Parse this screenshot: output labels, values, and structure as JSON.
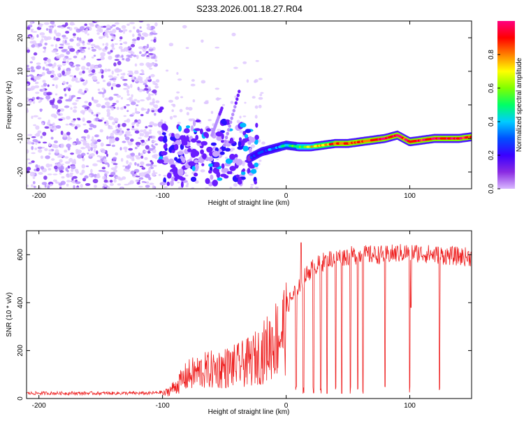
{
  "title": "S233.2026.001.18.27.R04",
  "chart_data": [
    {
      "type": "heatmap",
      "xlabel": "Height of straight line (km)",
      "ylabel": "Frequency (Hz)",
      "xlim": [
        -210,
        150
      ],
      "ylim": [
        -25,
        25
      ],
      "xticks": [
        -200,
        -100,
        0,
        100
      ],
      "yticks": [
        -20,
        -10,
        0,
        10,
        20
      ],
      "colorbar": {
        "label": "Normalized spectral amplitude",
        "range": [
          0,
          1
        ],
        "ticks": [
          "0.0",
          "0.2",
          "0.4",
          "0.6",
          "0.8"
        ],
        "colors": [
          "#ffffff",
          "#d9b8ff",
          "#8a2be2",
          "#3a00ff",
          "#0050ff",
          "#00ccff",
          "#00ff66",
          "#80ff00",
          "#ffff00",
          "#ff8000",
          "#ff0000",
          "#ff0080"
        ]
      },
      "track": {
        "x": [
          -100,
          -90,
          -80,
          -70,
          -60,
          -50,
          -40,
          -30,
          -20,
          -10,
          0,
          10,
          20,
          30,
          40,
          50,
          60,
          70,
          80,
          90,
          100,
          110,
          120,
          130,
          140,
          150
        ],
        "y": [
          -15,
          -16,
          -14,
          -13,
          -15,
          -13,
          -14,
          -16,
          -14,
          -13,
          -12,
          -12.5,
          -12.5,
          -12,
          -11.5,
          -11.5,
          -11,
          -10.5,
          -10,
          -9,
          -11,
          -10.5,
          -10,
          -10,
          -10,
          -9.5
        ],
        "amplitude": [
          0.25,
          0.3,
          0.28,
          0.3,
          0.32,
          0.3,
          0.3,
          0.32,
          0.35,
          0.4,
          0.5,
          0.6,
          0.7,
          0.75,
          0.85,
          0.85,
          0.85,
          0.9,
          0.95,
          0.95,
          0.9,
          0.92,
          0.95,
          0.95,
          0.9,
          0.9
        ]
      }
    },
    {
      "type": "line",
      "xlabel": "Height of straight line (km)",
      "ylabel": "SNR (10 * v/v)",
      "xlim": [
        -210,
        150
      ],
      "ylim": [
        0,
        700
      ],
      "xticks": [
        -200,
        -100,
        0,
        100
      ],
      "yticks": [
        0,
        200,
        400,
        600
      ],
      "color": "#ee2020",
      "envelope": {
        "x": [
          -210,
          -110,
          -100,
          -90,
          -80,
          -70,
          -60,
          -50,
          -40,
          -30,
          -20,
          -10,
          0,
          10,
          20,
          30,
          40,
          60,
          80,
          100,
          120,
          150
        ],
        "y": [
          15,
          15,
          20,
          60,
          120,
          140,
          150,
          160,
          170,
          190,
          230,
          300,
          380,
          470,
          540,
          570,
          590,
          600,
          600,
          610,
          600,
          590
        ]
      }
    }
  ]
}
